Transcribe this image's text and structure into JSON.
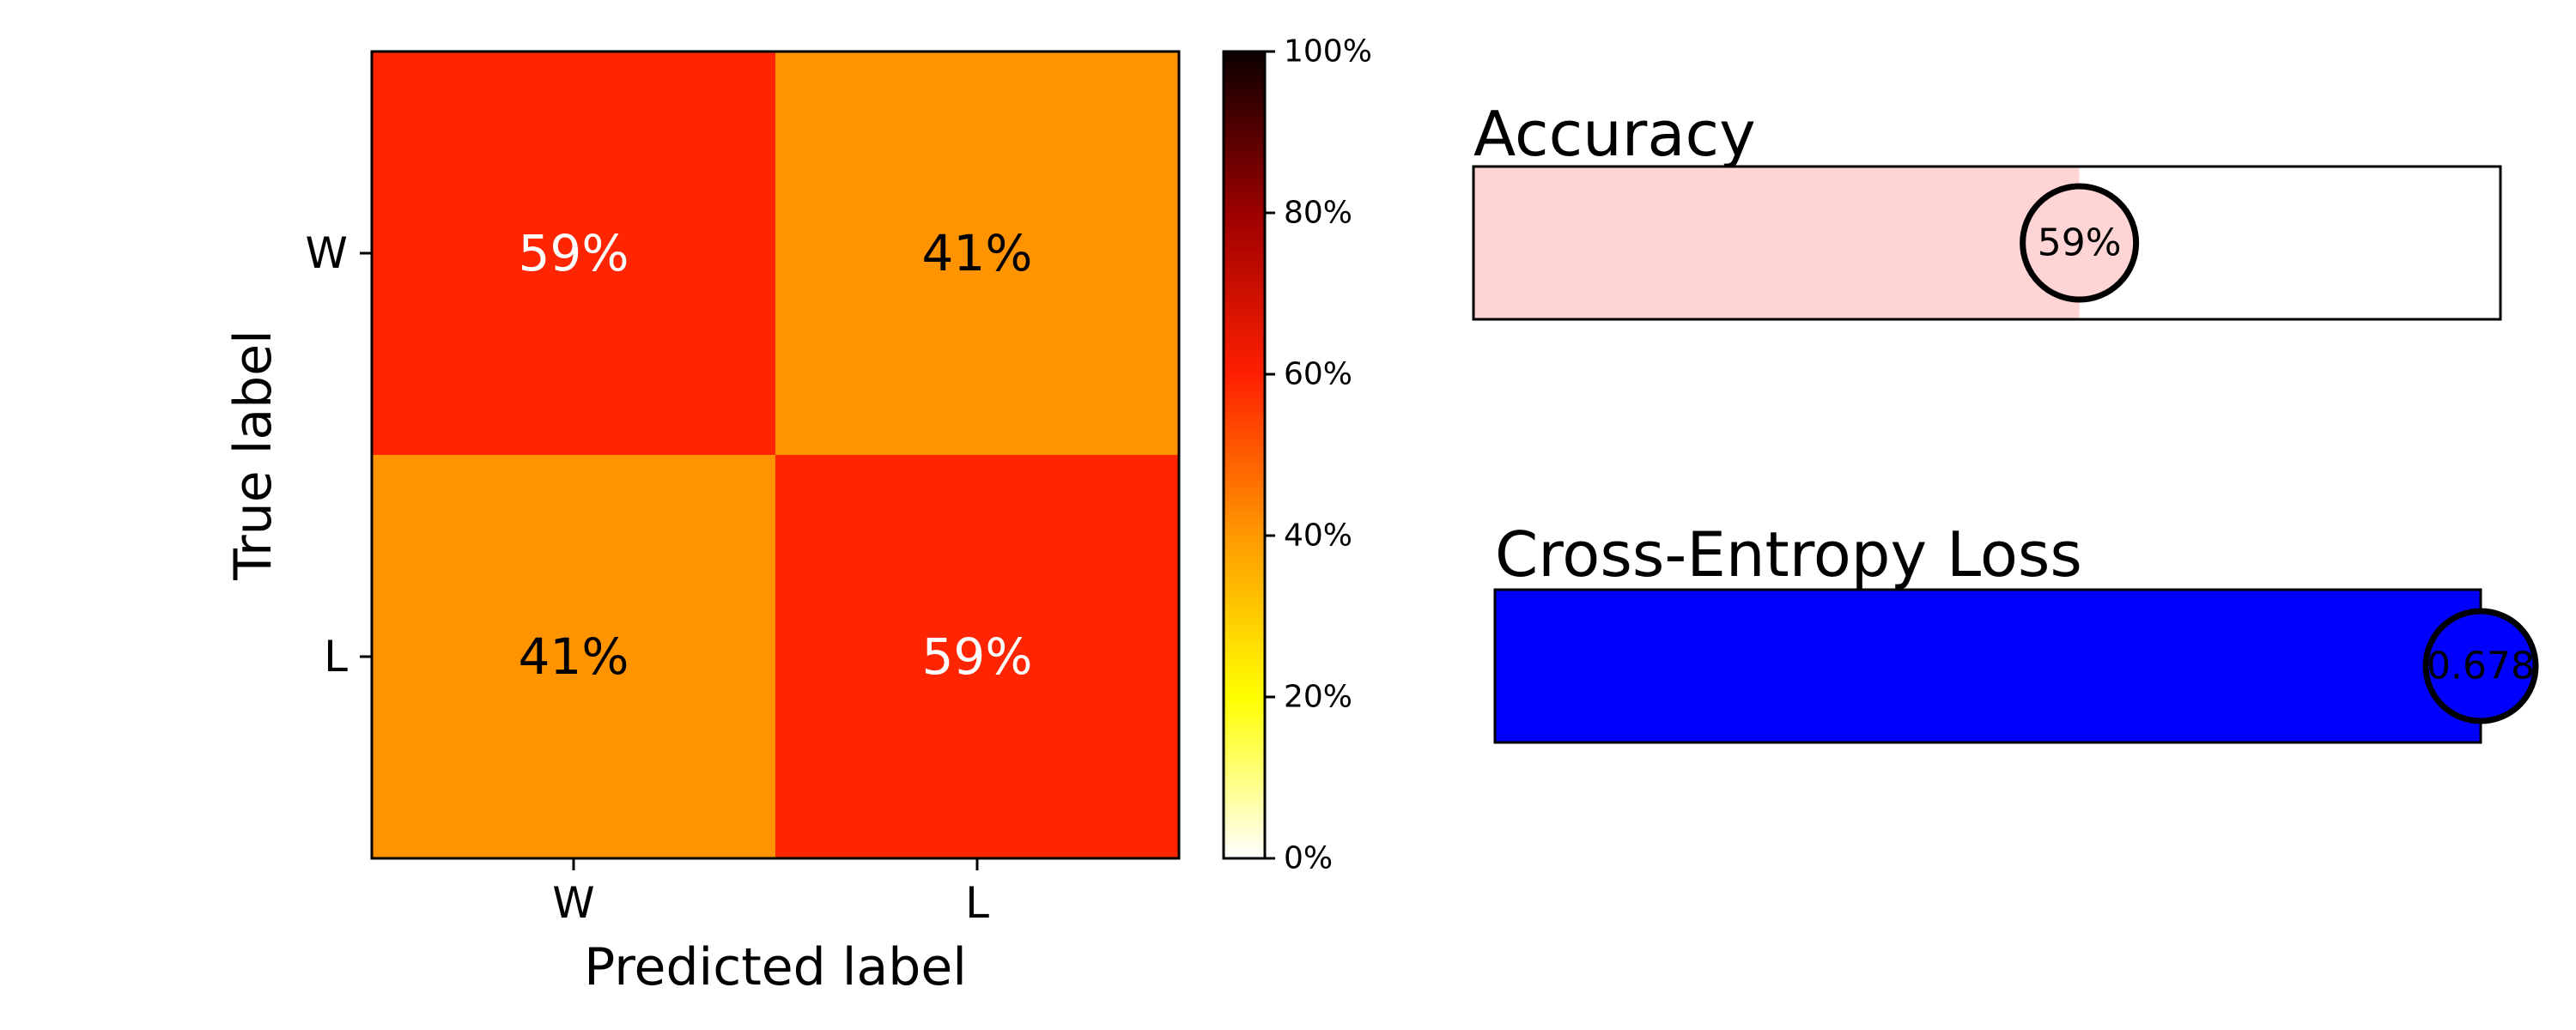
{
  "chart_data": [
    {
      "type": "heatmap",
      "title": "",
      "xlabel": "Predicted label",
      "ylabel": "True label",
      "x_categories": [
        "W",
        "L"
      ],
      "y_categories": [
        "W",
        "L"
      ],
      "values": [
        [
          59,
          41
        ],
        [
          41,
          59
        ]
      ],
      "cell_labels": [
        [
          "59%",
          "41%"
        ],
        [
          "41%",
          "59%"
        ]
      ],
      "colormap": "hot_r",
      "colorbar": {
        "range": [
          0,
          100
        ],
        "ticks": [
          0,
          20,
          40,
          60,
          80,
          100
        ],
        "tick_labels": [
          "0%",
          "20%",
          "40%",
          "60%",
          "80%",
          "100%"
        ]
      }
    },
    {
      "type": "bar",
      "title": "Accuracy",
      "value": 0.59,
      "value_label": "59%",
      "range": [
        0,
        1
      ],
      "fill_color": "#ffd4d4"
    },
    {
      "type": "bar",
      "title": "Cross-Entropy Loss",
      "value": 0.678,
      "value_label": "0.678",
      "fill_color": "#0000ff"
    }
  ]
}
